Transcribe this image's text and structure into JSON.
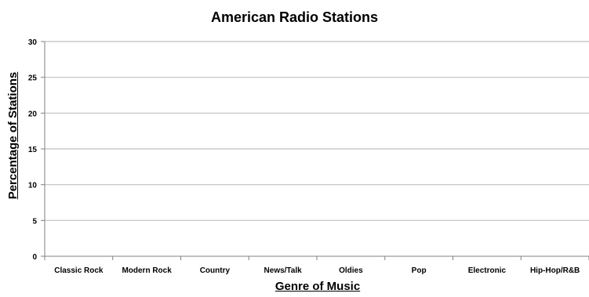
{
  "chart_data": {
    "type": "bar",
    "title": "American Radio Stations",
    "xlabel": "Genre of Music",
    "ylabel": "Percentage of Stations",
    "categories": [
      "Classic Rock",
      "Modern Rock",
      "Country",
      "News/Talk",
      "Oldies",
      "Pop",
      "Electronic",
      "Hip-Hop/R&B"
    ],
    "values": [
      null,
      null,
      null,
      null,
      null,
      null,
      null,
      null
    ],
    "ylim": [
      0,
      30
    ],
    "yticks": [
      "0",
      "5",
      "10",
      "15",
      "20",
      "25",
      "30"
    ],
    "grid": true,
    "legend": "none",
    "colors": {
      "gridline": "#c0c0c0",
      "axis": "#808080",
      "text": "#000000"
    }
  }
}
